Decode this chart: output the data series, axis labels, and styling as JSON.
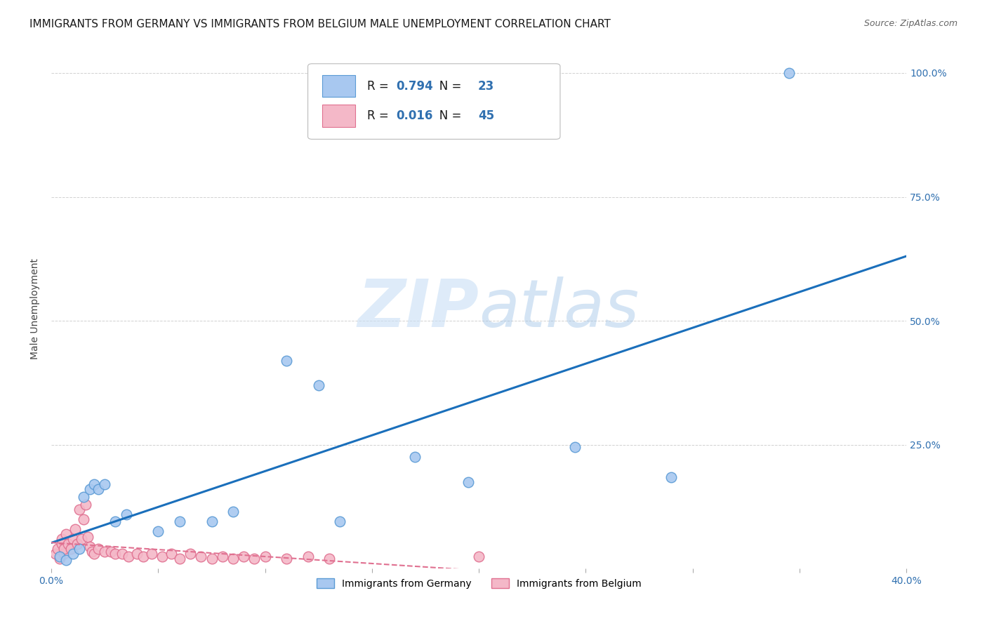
{
  "title": "IMMIGRANTS FROM GERMANY VS IMMIGRANTS FROM BELGIUM MALE UNEMPLOYMENT CORRELATION CHART",
  "source": "Source: ZipAtlas.com",
  "ylabel": "Male Unemployment",
  "xlim": [
    0.0,
    0.4
  ],
  "ylim": [
    0.0,
    1.05
  ],
  "germany_x": [
    0.004,
    0.007,
    0.01,
    0.013,
    0.015,
    0.018,
    0.02,
    0.022,
    0.025,
    0.03,
    0.035,
    0.05,
    0.06,
    0.075,
    0.085,
    0.11,
    0.125,
    0.135,
    0.17,
    0.195,
    0.245,
    0.29,
    0.345
  ],
  "germany_y": [
    0.025,
    0.018,
    0.03,
    0.04,
    0.145,
    0.16,
    0.17,
    0.16,
    0.17,
    0.095,
    0.11,
    0.075,
    0.095,
    0.095,
    0.115,
    0.42,
    0.37,
    0.095,
    0.225,
    0.175,
    0.245,
    0.185,
    1.0
  ],
  "belgium_x": [
    0.002,
    0.003,
    0.004,
    0.005,
    0.005,
    0.006,
    0.006,
    0.007,
    0.008,
    0.009,
    0.01,
    0.011,
    0.012,
    0.013,
    0.014,
    0.015,
    0.016,
    0.017,
    0.018,
    0.019,
    0.02,
    0.022,
    0.025,
    0.028,
    0.03,
    0.033,
    0.036,
    0.04,
    0.043,
    0.047,
    0.052,
    0.056,
    0.06,
    0.065,
    0.07,
    0.075,
    0.08,
    0.085,
    0.09,
    0.095,
    0.1,
    0.11,
    0.12,
    0.13,
    0.2
  ],
  "belgium_y": [
    0.03,
    0.04,
    0.02,
    0.05,
    0.06,
    0.03,
    0.04,
    0.07,
    0.05,
    0.04,
    0.06,
    0.08,
    0.05,
    0.12,
    0.06,
    0.1,
    0.13,
    0.065,
    0.045,
    0.035,
    0.03,
    0.04,
    0.035,
    0.035,
    0.03,
    0.03,
    0.025,
    0.03,
    0.025,
    0.03,
    0.025,
    0.03,
    0.02,
    0.03,
    0.025,
    0.02,
    0.025,
    0.02,
    0.025,
    0.02,
    0.025,
    0.02,
    0.025,
    0.02,
    0.025
  ],
  "germany_color": "#a8c8f0",
  "germany_edge_color": "#5b9bd5",
  "belgium_color": "#f4b8c8",
  "belgium_edge_color": "#e07090",
  "germany_line_color": "#1a6fbb",
  "belgium_line_color": "#e07090",
  "R_germany": 0.794,
  "N_germany": 23,
  "R_belgium": 0.016,
  "N_belgium": 45,
  "watermark_zip": "ZIP",
  "watermark_atlas": "atlas",
  "background_color": "#ffffff",
  "grid_color": "#cccccc",
  "legend_R_color": "#3070b0",
  "legend_N_color": "#3070b0"
}
